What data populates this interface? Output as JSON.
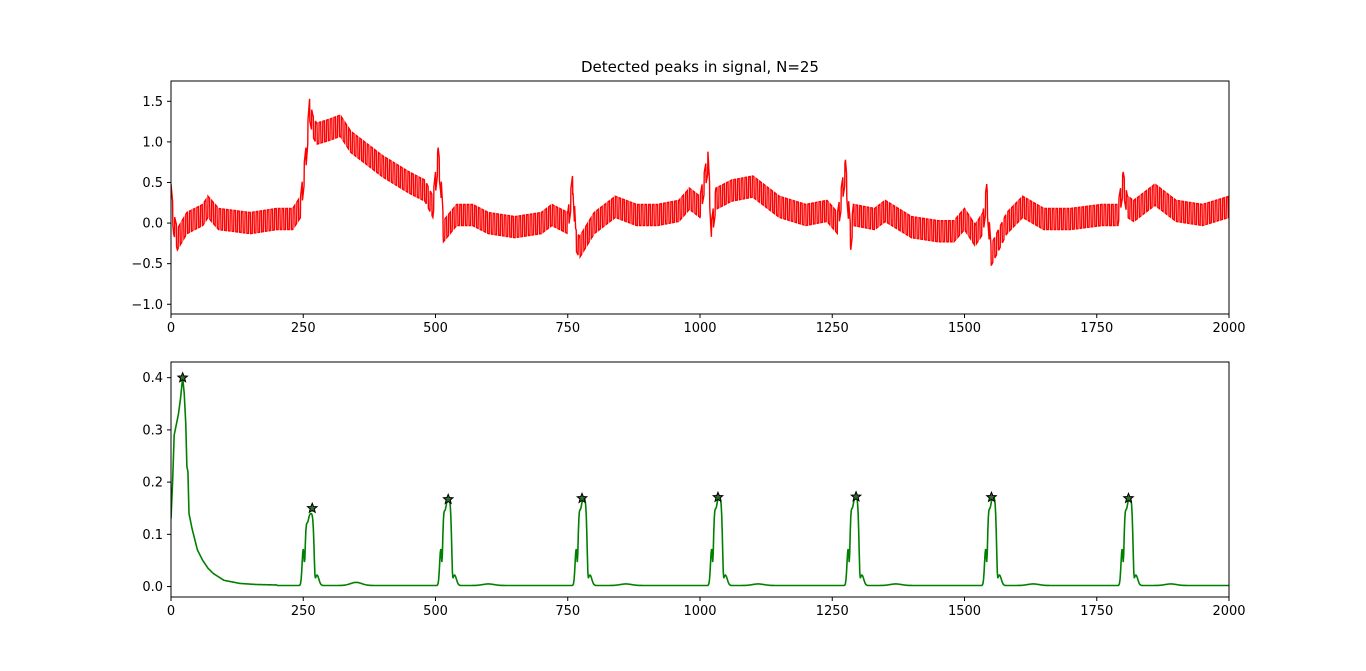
{
  "chart_data": [
    {
      "type": "line",
      "title": "Detected peaks in signal, N=25",
      "xlim": [
        0,
        2000
      ],
      "ylim": [
        -1.12,
        1.75
      ],
      "xticks": [
        0,
        250,
        500,
        750,
        1000,
        1250,
        1500,
        1750,
        2000
      ],
      "yticks": [
        -1.0,
        -0.5,
        0.0,
        0.5,
        1.0,
        1.5
      ],
      "ytick_labels": [
        "−1.0",
        "−0.5",
        "0.0",
        "0.5",
        "1.0",
        "1.5"
      ],
      "grid": false,
      "series": [
        {
          "color": "#ff0000",
          "description_points": {
            "x": [
              0,
              5,
              12,
              30,
              60,
              70,
              90,
              150,
              200,
              230,
              245,
              255,
              262,
              268,
              275,
              300,
              320,
              340,
              360,
              400,
              450,
              480,
              495,
              505,
              510,
              515,
              540,
              570,
              600,
              650,
              700,
              720,
              750,
              760,
              765,
              772,
              800,
              840,
              880,
              920,
              960,
              980,
              1000,
              1015,
              1022,
              1030,
              1060,
              1100,
              1150,
              1200,
              1240,
              1260,
              1275,
              1285,
              1290,
              1330,
              1350,
              1400,
              1450,
              1480,
              1500,
              1520,
              1535,
              1542,
              1550,
              1580,
              1610,
              1650,
              1700,
              1760,
              1790,
              1800,
              1808,
              1820,
              1860,
              1900,
              1950,
              2000
            ],
            "center": [
              0.35,
              0.0,
              -0.2,
              0.0,
              0.1,
              0.2,
              0.05,
              0.0,
              0.05,
              0.05,
              0.2,
              0.8,
              1.4,
              1.2,
              1.1,
              1.15,
              1.2,
              1.0,
              0.9,
              0.7,
              0.5,
              0.4,
              0.2,
              0.8,
              0.5,
              -0.1,
              0.1,
              0.1,
              0.0,
              -0.05,
              0.0,
              0.1,
              0.0,
              0.5,
              -0.2,
              -0.3,
              0.0,
              0.2,
              0.1,
              0.1,
              0.15,
              0.3,
              0.2,
              0.75,
              -0.1,
              0.3,
              0.4,
              0.45,
              0.2,
              0.1,
              0.15,
              0.0,
              0.65,
              -0.2,
              0.1,
              0.05,
              0.15,
              -0.05,
              -0.1,
              -0.1,
              0.05,
              -0.15,
              0.0,
              0.35,
              -0.4,
              0.0,
              0.2,
              0.05,
              0.05,
              0.1,
              0.1,
              0.5,
              0.2,
              0.15,
              0.35,
              0.15,
              0.1,
              0.2
            ],
            "oscillation_amplitude": 0.13,
            "oscillation_period": 7
          }
        }
      ]
    },
    {
      "type": "line",
      "xlim": [
        0,
        2000
      ],
      "ylim": [
        -0.02,
        0.43
      ],
      "xticks": [
        0,
        250,
        500,
        750,
        1000,
        1250,
        1500,
        1750,
        2000
      ],
      "yticks": [
        0.0,
        0.1,
        0.2,
        0.3,
        0.4
      ],
      "ytick_labels": [
        "0.0",
        "0.1",
        "0.2",
        "0.3",
        "0.4"
      ],
      "grid": false,
      "series": [
        {
          "color": "#008000",
          "initial_points": {
            "x": [
              0,
              3,
              6,
              10,
              14,
              18,
              22,
              25,
              28,
              30,
              32,
              34,
              36,
              40,
              45,
              50,
              60,
              70,
              80,
              100,
              130,
              160,
              200
            ],
            "y": [
              0.13,
              0.2,
              0.29,
              0.31,
              0.33,
              0.36,
              0.4,
              0.37,
              0.31,
              0.23,
              0.22,
              0.14,
              0.13,
              0.11,
              0.09,
              0.07,
              0.05,
              0.035,
              0.025,
              0.012,
              0.006,
              0.004,
              0.003
            ]
          },
          "baseline": 0.002,
          "pulses": [
            {
              "center": 262,
              "peak": 0.14
            },
            {
              "center": 522,
              "peak": 0.167
            },
            {
              "center": 778,
              "peak": 0.169
            },
            {
              "center": 1034,
              "peak": 0.171
            },
            {
              "center": 1292,
              "peak": 0.172
            },
            {
              "center": 1552,
              "peak": 0.171
            },
            {
              "center": 1810,
              "peak": 0.169
            }
          ],
          "bumps": [
            {
              "center": 350,
              "height": 0.006
            },
            {
              "center": 600,
              "height": 0.003
            },
            {
              "center": 860,
              "height": 0.003
            },
            {
              "center": 1110,
              "height": 0.003
            },
            {
              "center": 1370,
              "height": 0.003
            },
            {
              "center": 1630,
              "height": 0.003
            },
            {
              "center": 1890,
              "height": 0.003
            }
          ]
        }
      ],
      "peaks": {
        "marker": "star",
        "color": "#000000",
        "x": [
          22,
          267,
          524,
          777,
          1034,
          1295,
          1551,
          1810
        ],
        "y": [
          0.4,
          0.15,
          0.167,
          0.169,
          0.171,
          0.172,
          0.171,
          0.169
        ]
      }
    }
  ]
}
